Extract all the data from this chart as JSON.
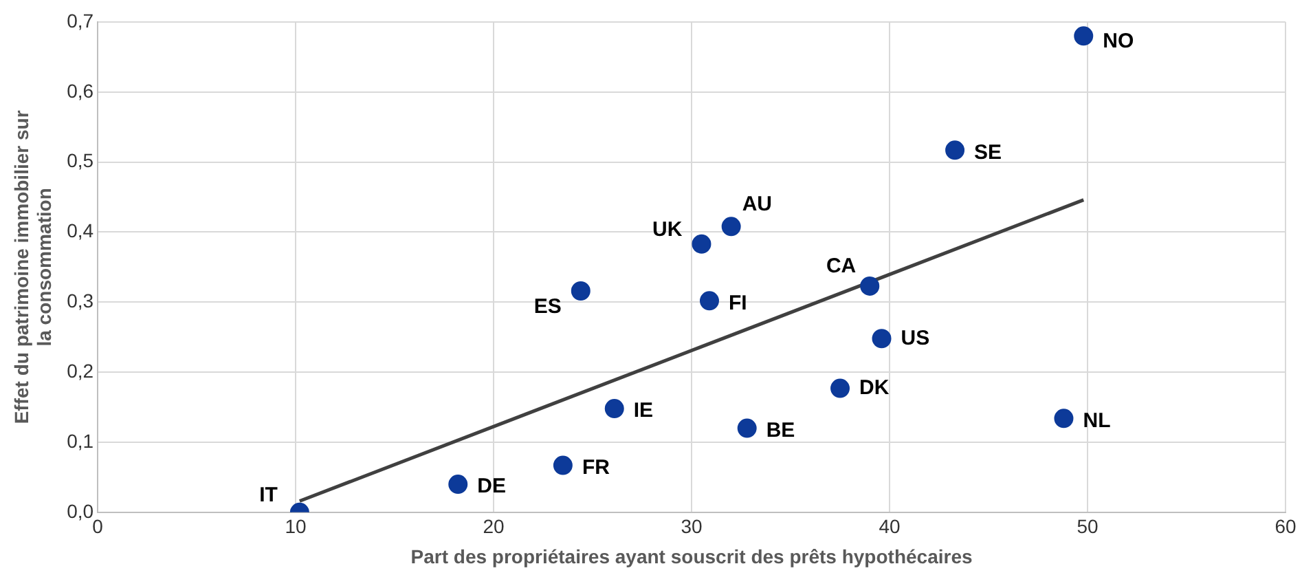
{
  "chart_data": {
    "type": "scatter",
    "xlabel": "Part des propriétaires ayant souscrit des prêts hypothécaires",
    "ylabel": "Effet du patrimoine immobilier sur la consommation",
    "xlim": [
      0,
      60
    ],
    "xticks": [
      0,
      10,
      20,
      30,
      40,
      50,
      60
    ],
    "ylim": [
      0,
      0.7
    ],
    "yticks": [
      {
        "value": 0,
        "label": "0,0"
      },
      {
        "value": 0.1,
        "label": "0,1"
      },
      {
        "value": 0.2,
        "label": "0,2"
      },
      {
        "value": 0.3,
        "label": "0,3"
      },
      {
        "value": 0.4,
        "label": "0,4"
      },
      {
        "value": 0.5,
        "label": "0,5"
      },
      {
        "value": 0.6,
        "label": "0,6"
      },
      {
        "value": 0.7,
        "label": "0,7"
      }
    ],
    "grid": true,
    "legend": false,
    "marker": "circle",
    "series": [
      {
        "type": "scatter",
        "color": "#0d3a99",
        "x": [
          10.2,
          18.2,
          23.5,
          26.1,
          32.8,
          24.4,
          30.9,
          30.5,
          32.0,
          39.0,
          39.6,
          37.5,
          43.3,
          48.8,
          49.8
        ],
        "values": [
          0,
          0.04,
          0.067,
          0.148,
          0.12,
          0.316,
          0.302,
          0.383,
          0.408,
          0.323,
          0.248,
          0.177,
          0.517,
          0.134,
          0.68
        ]
      },
      {
        "type": "line",
        "color": "#404040",
        "marker": "none",
        "line_style": "solid",
        "x": [
          10.2,
          49.8
        ],
        "values": [
          0.016,
          0.446
        ]
      }
    ],
    "annotations": [
      {
        "text": "IT",
        "x": 10.2,
        "y": 0
      },
      {
        "text": "DE",
        "x": 18.2,
        "y": 0.04
      },
      {
        "text": "FR",
        "x": 23.5,
        "y": 0.067
      },
      {
        "text": "IE",
        "x": 26.1,
        "y": 0.148
      },
      {
        "text": "BE",
        "x": 32.8,
        "y": 0.12
      },
      {
        "text": "ES",
        "x": 24.4,
        "y": 0.316
      },
      {
        "text": "FI",
        "x": 30.9,
        "y": 0.302
      },
      {
        "text": "UK",
        "x": 30.5,
        "y": 0.383
      },
      {
        "text": "AU",
        "x": 32.0,
        "y": 0.408
      },
      {
        "text": "CA",
        "x": 39.0,
        "y": 0.323
      },
      {
        "text": "US",
        "x": 39.6,
        "y": 0.248
      },
      {
        "text": "DK",
        "x": 37.5,
        "y": 0.177
      },
      {
        "text": "SE",
        "x": 43.3,
        "y": 0.517
      },
      {
        "text": "NL",
        "x": 48.8,
        "y": 0.134
      },
      {
        "text": "NO",
        "x": 49.8,
        "y": 0.68
      }
    ]
  }
}
